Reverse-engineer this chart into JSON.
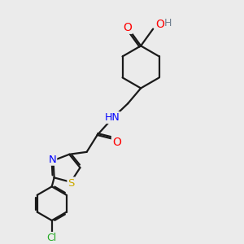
{
  "bg_color": "#ebebeb",
  "bond_color": "#1a1a1a",
  "atom_colors": {
    "O": "#ff0000",
    "N": "#0000ff",
    "S": "#ccaa00",
    "Cl": "#22aa22",
    "C": "#1a1a1a",
    "H": "#708090"
  },
  "lw": 1.6,
  "fs": 8.5
}
